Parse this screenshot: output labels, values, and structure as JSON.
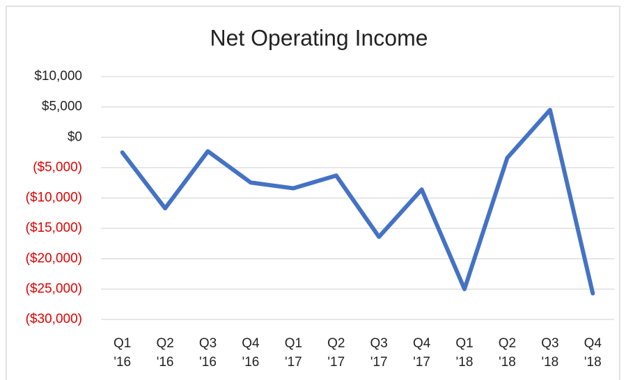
{
  "chart_data": {
    "type": "line",
    "title": "Net Operating Income",
    "categories": [
      "Q1 '16",
      "Q2 '16",
      "Q3 '16",
      "Q4 '16",
      "Q1 '17",
      "Q2 '17",
      "Q3 '17",
      "Q4 '17",
      "Q1 '18",
      "Q2 '18",
      "Q3 '18",
      "Q4 '18"
    ],
    "series": [
      {
        "name": "Net Operating Income",
        "color": "#4472c4",
        "values": [
          -2500,
          -11700,
          -2300,
          -7450,
          -8400,
          -6300,
          -16400,
          -8600,
          -25000,
          -3400,
          4500,
          -25700
        ]
      }
    ],
    "ylim": [
      -30000,
      10000
    ],
    "yticks": [
      {
        "value": 10000,
        "label": "$10,000"
      },
      {
        "value": 5000,
        "label": "$5,000"
      },
      {
        "value": 0,
        "label": "$0"
      },
      {
        "value": -5000,
        "label": "($5,000)"
      },
      {
        "value": -10000,
        "label": "($10,000)"
      },
      {
        "value": -15000,
        "label": "($15,000)"
      },
      {
        "value": -20000,
        "label": "($20,000)"
      },
      {
        "value": -25000,
        "label": "($25,000)"
      },
      {
        "value": -30000,
        "label": "($30,000)"
      }
    ],
    "negative_label_color": "#e00000",
    "grid": true
  }
}
